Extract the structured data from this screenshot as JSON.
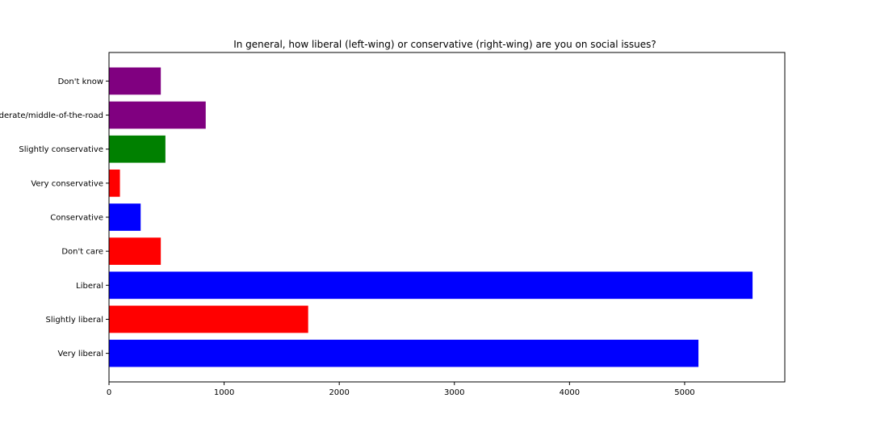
{
  "chart_data": {
    "type": "bar",
    "orientation": "horizontal",
    "title": "In general, how liberal (left-wing) or conservative (right-wing) are you on social issues?",
    "xlabel": "",
    "ylabel": "",
    "categories": [
      "Very liberal",
      "Slightly liberal",
      "Liberal",
      "Don't care",
      "Conservative",
      "Very conservative",
      "Slightly conservative",
      "Moderate/middle-of-the-road",
      "Don't know"
    ],
    "values": [
      5120,
      1730,
      5590,
      450,
      275,
      95,
      490,
      840,
      450
    ],
    "bar_colors": [
      "#0000ff",
      "#ff0000",
      "#0000ff",
      "#ff0000",
      "#0000ff",
      "#ff0000",
      "#008000",
      "#800080",
      "#800080"
    ],
    "xlim": [
      0,
      5870
    ],
    "x_ticks": [
      0,
      1000,
      2000,
      3000,
      4000,
      5000
    ],
    "grid": false,
    "legend": "none"
  }
}
